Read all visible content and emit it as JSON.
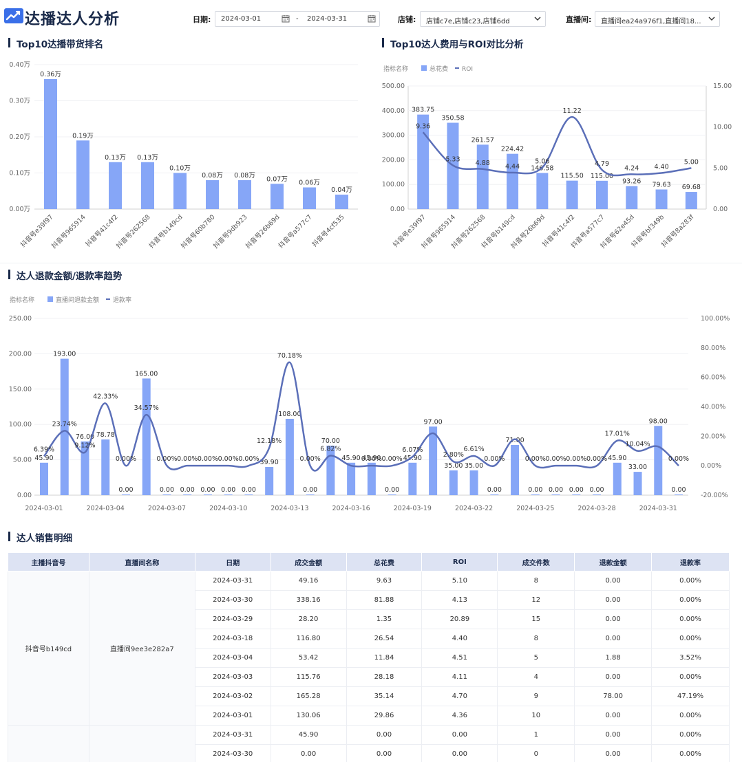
{
  "header": {
    "title": "达播达人分析",
    "filters": {
      "date_label": "日期:",
      "date_start": "2024-03-01",
      "date_sep": "-",
      "date_end": "2024-03-31",
      "store_label": "店铺:",
      "store_value": "店铺c7e,店铺c23,店铺6dd",
      "room_label": "直播间:",
      "room_value": "直播间ea24a976f1,直播间18..."
    }
  },
  "sections": {
    "top10_rank": "Top10达播带货排名",
    "top10_roi": "Top10达人费用与ROI对比分析",
    "refund_trend": "达人退款金额/退款率趋势",
    "sales_detail": "达人销售明细"
  },
  "chart_data": [
    {
      "type": "bar",
      "title": "Top10达播带货排名",
      "categories": [
        "抖音号e39f97",
        "抖音号965914",
        "抖音号41c4f2",
        "抖音号262568",
        "抖音号b149cd",
        "抖音号60b780",
        "抖音号9db923",
        "抖音号26b69d",
        "抖音号a577c7",
        "抖音号4cf535"
      ],
      "values": [
        0.36,
        0.19,
        0.13,
        0.13,
        0.1,
        0.08,
        0.08,
        0.07,
        0.06,
        0.04
      ],
      "value_labels": [
        "0.36万",
        "0.19万",
        "0.13万",
        "0.13万",
        "0.10万",
        "0.08万",
        "0.08万",
        "0.07万",
        "0.06万",
        "0.04万"
      ],
      "y_ticks": [
        "0.00万",
        "0.10万",
        "0.20万",
        "0.30万",
        "0.40万"
      ],
      "ylim": [
        0,
        0.4
      ],
      "color": "#86a6f7"
    },
    {
      "type": "bar",
      "title": "Top10达人费用与ROI对比分析",
      "legend_title": "指标名称",
      "legend_items": [
        "总花费",
        "ROI"
      ],
      "categories": [
        "抖音号e39f97",
        "抖音号965914",
        "抖音号262568",
        "抖音号b149cd",
        "抖音号26b69d",
        "抖音号41c4f2",
        "抖音号a577c7",
        "抖音号62e45d",
        "抖音号bf349b",
        "抖音号8a283f"
      ],
      "series": [
        {
          "name": "总花费",
          "type": "bar",
          "values": [
            383.75,
            350.58,
            261.57,
            224.42,
            146.58,
            115.5,
            115.0,
            93.26,
            79.63,
            69.68
          ],
          "labels": [
            "383.75",
            "350.58",
            "261.57",
            "224.42",
            "146.58",
            "115.50",
            "115.00",
            "93.26",
            "79.63",
            "69.68"
          ]
        },
        {
          "name": "ROI",
          "type": "line",
          "values": [
            9.36,
            5.33,
            4.88,
            4.44,
            5.06,
            11.22,
            4.79,
            4.24,
            4.4,
            5.0
          ],
          "labels": [
            "9.36",
            "5.33",
            "4.88",
            "4.44",
            "5.06",
            "11.22",
            "4.79",
            "4.24",
            "4.40",
            "5.00"
          ]
        }
      ],
      "y_left_ticks": [
        "0.00",
        "100.00",
        "200.00",
        "300.00",
        "400.00",
        "500.00"
      ],
      "y_right_ticks": [
        "0.00",
        "5.00",
        "10.00",
        "15.00"
      ],
      "ylim_left": [
        0,
        500
      ],
      "ylim_right": [
        0,
        15
      ],
      "bar_color": "#86a6f7",
      "line_color": "#5b6fb8"
    },
    {
      "type": "bar",
      "title": "达人退款金额/退款率趋势",
      "legend_title": "指标名称",
      "legend_items": [
        "直播间退款金额",
        "退款率"
      ],
      "x_ticks": [
        "2024-03-01",
        "2024-03-04",
        "2024-03-07",
        "2024-03-10",
        "2024-03-13",
        "2024-03-16",
        "2024-03-19",
        "2024-03-22",
        "2024-03-25",
        "2024-03-28",
        "2024-03-31"
      ],
      "series": [
        {
          "name": "直播间退款金额",
          "type": "bar",
          "values": [
            45.9,
            193.0,
            76.0,
            78.78,
            0.0,
            165.0,
            0.0,
            0.0,
            0.0,
            0.0,
            0.0,
            39.9,
            108.0,
            0.0,
            70.0,
            45.9,
            45.9,
            0.0,
            45.9,
            97.0,
            35.0,
            35.0,
            0.0,
            71.0,
            0.0,
            0.0,
            0.0,
            0.0,
            45.9,
            33.0,
            98.0,
            0.0
          ],
          "labels": [
            "45.90",
            "193.00",
            "76.00",
            "78.78",
            "0.00",
            "165.00",
            "0.00",
            "0.00",
            "0.00",
            "0.00",
            "0.00",
            "39.90",
            "108.00",
            "0.00",
            "70.00",
            "45.90",
            "45.90",
            "0.00",
            "45.90",
            "97.00",
            "35.00",
            "35.00",
            "0.00",
            "71.00",
            "0.00",
            "0.00",
            "0.00",
            "0.00",
            "45.90",
            "33.00",
            "98.00",
            "0.00"
          ]
        },
        {
          "name": "退款率",
          "type": "line",
          "values": [
            6.39,
            23.74,
            9.12,
            42.33,
            0.0,
            34.57,
            0.0,
            0.0,
            0.0,
            0.0,
            0.0,
            12.18,
            70.18,
            0.0,
            6.82,
            0.0,
            0.0,
            0.0,
            6.07,
            22.0,
            2.8,
            6.61,
            0.0,
            18.0,
            0.0,
            0.0,
            0.0,
            0.0,
            17.01,
            10.04,
            13.0,
            0.0
          ],
          "labels": [
            "6.39%",
            "23.74%",
            "9.12%",
            "42.33%",
            "0.00%",
            "34.57%",
            "0.00%",
            "0.00%",
            "0.00%",
            "0.00%",
            "0.00%",
            "12.18%",
            "70.18%",
            "0.00%",
            "6.82%",
            "",
            "0.00%",
            "0.00%",
            "6.07%",
            "",
            "2.80%",
            "6.61%",
            "0.00%",
            "",
            "0.00%",
            "0.00%",
            "0.00%",
            "0.00%",
            "17.01%",
            "10.04%",
            "",
            "0.00%"
          ]
        }
      ],
      "y_left_ticks": [
        "0.00",
        "50.00",
        "100.00",
        "150.00",
        "200.00",
        "250.00"
      ],
      "y_right_ticks": [
        "-20.00%",
        "0.00%",
        "20.00%",
        "40.00%",
        "60.00%",
        "80.00%",
        "100.00%"
      ],
      "ylim_left": [
        0,
        250
      ],
      "ylim_right": [
        -20,
        100
      ],
      "bar_color": "#86a6f7",
      "line_color": "#5b6fb8"
    }
  ],
  "table": {
    "headers": [
      "主播抖音号",
      "直播间名称",
      "日期",
      "成交金额",
      "总花费",
      "ROI",
      "成交件数",
      "退款金额",
      "退款率"
    ],
    "groups": [
      {
        "anchor": "抖音号b149cd",
        "room": "直播间9ee3e282a7",
        "rows": [
          [
            "2024-03-31",
            "49.16",
            "9.63",
            "5.10",
            "8",
            "0.00",
            "0.00%"
          ],
          [
            "2024-03-30",
            "338.16",
            "81.88",
            "4.13",
            "12",
            "0.00",
            "0.00%"
          ],
          [
            "2024-03-29",
            "28.20",
            "1.35",
            "20.89",
            "15",
            "0.00",
            "0.00%"
          ],
          [
            "2024-03-18",
            "116.80",
            "26.54",
            "4.40",
            "8",
            "0.00",
            "0.00%"
          ],
          [
            "2024-03-04",
            "53.42",
            "11.84",
            "4.51",
            "5",
            "1.88",
            "3.52%"
          ],
          [
            "2024-03-03",
            "115.76",
            "28.18",
            "4.11",
            "4",
            "0.00",
            "0.00%"
          ],
          [
            "2024-03-02",
            "165.28",
            "35.14",
            "4.70",
            "9",
            "78.00",
            "47.19%"
          ],
          [
            "2024-03-01",
            "130.06",
            "29.86",
            "4.36",
            "10",
            "0.00",
            "0.00%"
          ]
        ]
      },
      {
        "anchor": "",
        "room": "",
        "rows": [
          [
            "2024-03-31",
            "45.90",
            "0.00",
            "0.00",
            "1",
            "0.00",
            "0.00%"
          ],
          [
            "2024-03-30",
            "0.00",
            "0.00",
            "0.00",
            "0",
            "0.00",
            "0.00%"
          ]
        ]
      }
    ]
  }
}
